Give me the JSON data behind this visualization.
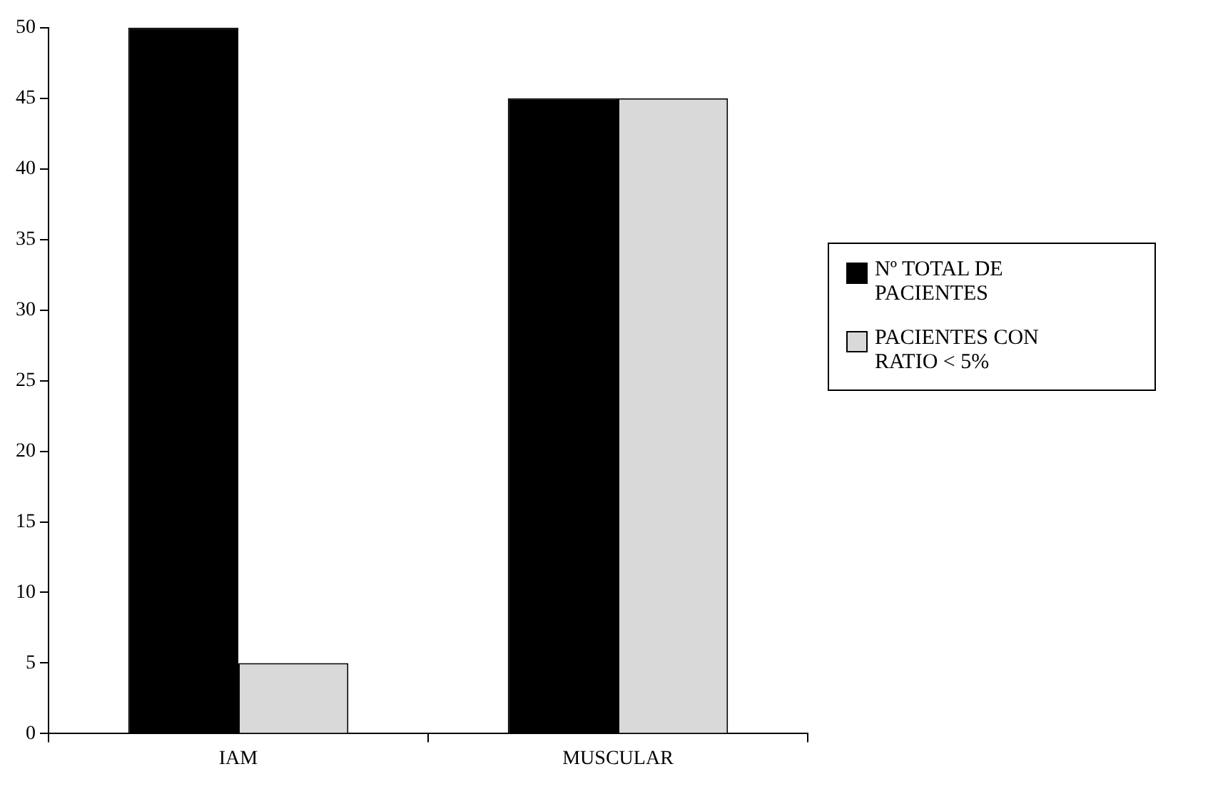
{
  "chart_data": {
    "type": "bar",
    "categories": [
      "IAM",
      "MUSCULAR"
    ],
    "series": [
      {
        "name": "Nº TOTAL DE PACIENTES",
        "color": "#000000",
        "values": [
          50,
          45
        ]
      },
      {
        "name": "PACIENTES CON RATIO < 5%",
        "color": "#d9d9d9",
        "values": [
          5,
          45
        ]
      }
    ],
    "ylim": [
      0,
      50
    ],
    "yticks": [
      0,
      5,
      10,
      15,
      20,
      25,
      30,
      35,
      40,
      45,
      50
    ],
    "grid": false,
    "legend": "right"
  }
}
